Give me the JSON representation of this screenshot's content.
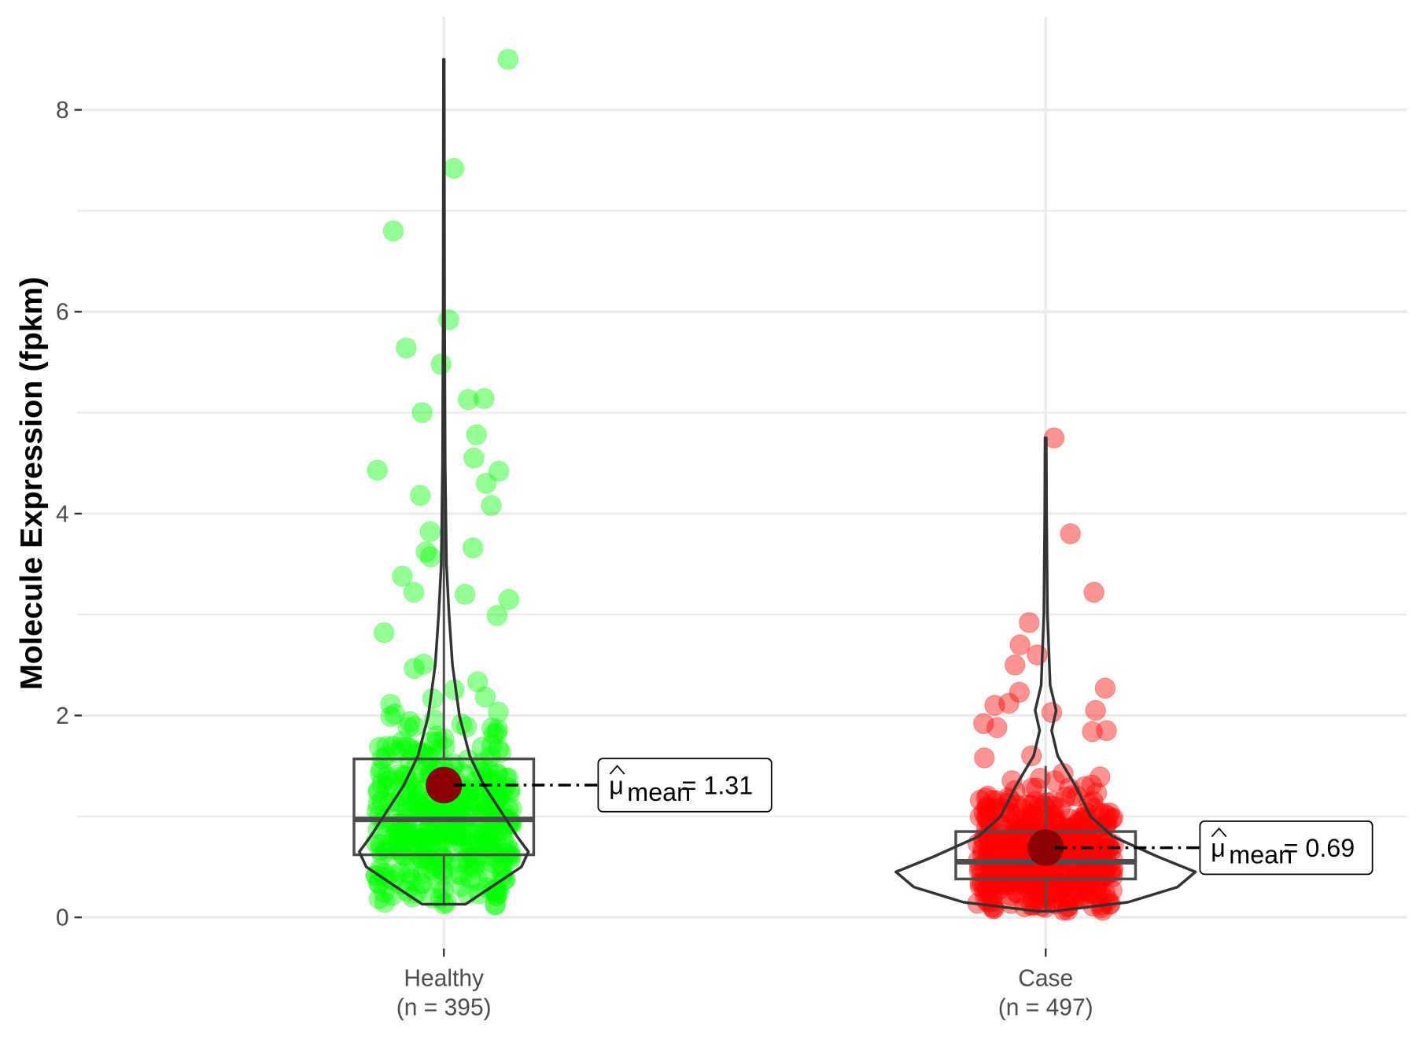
{
  "chart_data": {
    "type": "violin-box-jitter",
    "ylabel": "Molecule Expression (fpkm)",
    "xlabel": "",
    "ylim": [
      -0.4,
      8.9
    ],
    "yticks": [
      0,
      2,
      4,
      6,
      8
    ],
    "ytick_labels": [
      "0",
      "2",
      "4",
      "6",
      "8"
    ],
    "grid": true,
    "groups": [
      {
        "name": "Healthy",
        "n_label": "(n = 395)",
        "n": 395,
        "color": "#00ff00",
        "mean": 1.31,
        "mean_label_sub": "mean",
        "mean_label_value": "= 1.31",
        "box": {
          "q1": 0.62,
          "median": 0.97,
          "q3": 1.57,
          "whisker_low": 0.13,
          "whisker_high": 8.5
        },
        "outliers": [
          8.5,
          7.42,
          6.8,
          5.92,
          5.64,
          5.48,
          5.14,
          5.13,
          5.0,
          4.78,
          4.55,
          4.43,
          4.42,
          4.3,
          4.18,
          4.08,
          3.82,
          3.66,
          3.62,
          3.57,
          3.38,
          3.22,
          3.2,
          3.15,
          2.99,
          2.82
        ],
        "bulk_mean": 0.95,
        "bulk_sd": 0.55,
        "bulk_min": 0.12,
        "bulk_max": 2.8,
        "violin": [
          [
            0.13,
            0.25
          ],
          [
            0.3,
            0.55
          ],
          [
            0.5,
            0.9
          ],
          [
            0.65,
            0.98
          ],
          [
            0.8,
            0.85
          ],
          [
            1.0,
            0.7
          ],
          [
            1.3,
            0.47
          ],
          [
            1.6,
            0.3
          ],
          [
            2.0,
            0.18
          ],
          [
            2.5,
            0.1
          ],
          [
            3.0,
            0.06
          ],
          [
            3.5,
            0.03
          ],
          [
            4.5,
            0.015
          ],
          [
            6.0,
            0.008
          ],
          [
            8.5,
            0.004
          ]
        ]
      },
      {
        "name": "Case",
        "n_label": "(n = 497)",
        "n": 497,
        "color": "#ff0000",
        "mean": 0.69,
        "mean_label_sub": "mean",
        "mean_label_value": "= 0.69",
        "box": {
          "q1": 0.38,
          "median": 0.55,
          "q3": 0.85,
          "whisker_low": 0.05,
          "whisker_high": 1.5
        },
        "outliers": [
          4.75,
          3.8,
          3.22,
          2.92,
          2.7,
          2.6,
          2.5,
          2.27,
          2.23,
          2.12,
          2.1,
          2.05,
          2.03,
          1.92,
          1.88,
          1.85,
          1.84,
          1.6,
          1.58
        ],
        "bulk_mean": 0.6,
        "bulk_sd": 0.35,
        "bulk_min": 0.07,
        "bulk_max": 1.45,
        "violin": [
          [
            0.06,
            0.05
          ],
          [
            0.15,
            0.55
          ],
          [
            0.3,
            0.88
          ],
          [
            0.45,
            1.0
          ],
          [
            0.6,
            0.75
          ],
          [
            0.8,
            0.45
          ],
          [
            1.0,
            0.3
          ],
          [
            1.3,
            0.2
          ],
          [
            1.6,
            0.08
          ],
          [
            1.85,
            0.04
          ],
          [
            2.05,
            0.07
          ],
          [
            2.3,
            0.03
          ],
          [
            3.0,
            0.012
          ],
          [
            4.0,
            0.006
          ],
          [
            4.75,
            0.004
          ]
        ]
      }
    ]
  }
}
